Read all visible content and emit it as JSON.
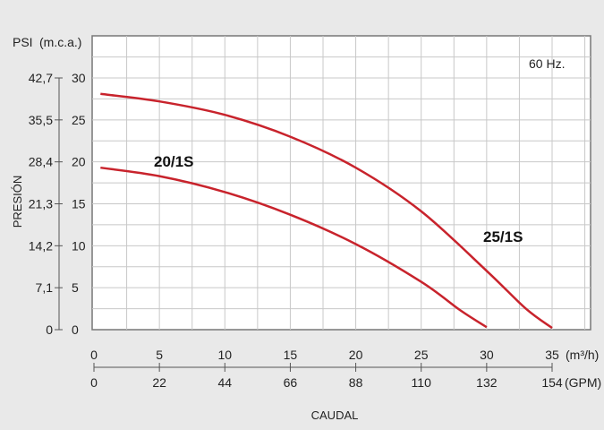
{
  "chart_data": {
    "type": "line",
    "frequency_note": "60 Hz.",
    "y_axis": {
      "title": "PRESIÓN",
      "unit_psi": "PSI",
      "unit_mca": "(m.c.a.)",
      "ylim": [
        0,
        30
      ],
      "ticks_mca": [
        "0",
        "5",
        "10",
        "15",
        "20",
        "25",
        "30"
      ],
      "ticks_psi": [
        "0",
        "7,1",
        "14,2",
        "21,3",
        "28,4",
        "35,5",
        "42,7"
      ]
    },
    "x_axis": {
      "title": "CAUDAL",
      "unit_m3h": "(m³/h)",
      "unit_gpm": "(GPM)",
      "xlim": [
        0,
        38
      ],
      "ticks_m3h": [
        "0",
        "5",
        "10",
        "15",
        "20",
        "25",
        "30",
        "35"
      ],
      "ticks_gpm": [
        "0",
        "22",
        "44",
        "66",
        "88",
        "110",
        "132",
        "154"
      ]
    },
    "series": [
      {
        "name": "20/1S",
        "x": [
          0.5,
          5,
          10,
          15,
          20,
          25,
          28,
          30
        ],
        "y": [
          19.3,
          18.3,
          16.4,
          13.7,
          10.2,
          5.7,
          2.3,
          0.3
        ]
      },
      {
        "name": "25/1S",
        "x": [
          0.5,
          5,
          10,
          15,
          20,
          25,
          30,
          33,
          35
        ],
        "y": [
          28.1,
          27.2,
          25.6,
          23.0,
          19.3,
          14.1,
          7.0,
          2.5,
          0.2
        ]
      }
    ],
    "colors": {
      "series": "#c8232c"
    }
  }
}
